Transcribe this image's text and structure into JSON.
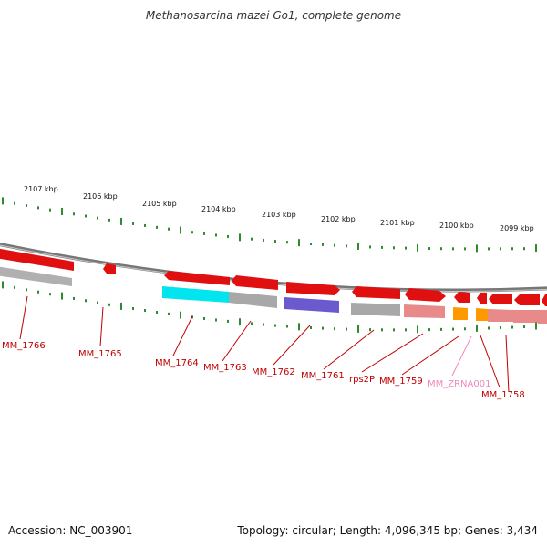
{
  "title": "Methanosarcina mazei Go1, complete genome",
  "footer": {
    "accession": "Accession: NC_003901",
    "topology": "Topology: circular; Length: 4,096,345 bp; Genes: 3,434"
  },
  "colors": {
    "backbone": "#8a8a8a",
    "tick": "#2e8b2e",
    "gene": "#e01010",
    "label": "#c00000",
    "rna_label": "#ee88bb",
    "cyan": "#00e5ee",
    "gray": "#a8a8a8",
    "purple": "#6a5acd",
    "pink": "#e88a8a",
    "orange": "#ff9900"
  },
  "kbp_ticks": [
    "2107 kbp",
    "2106 kbp",
    "2105 kbp",
    "2104 kbp",
    "2103 kbp",
    "2102 kbp",
    "2101 kbp",
    "2100 kbp",
    "2099 kbp"
  ],
  "genes": [
    {
      "id": "MM_1766"
    },
    {
      "id": "MM_1765"
    },
    {
      "id": "MM_1764"
    },
    {
      "id": "MM_1763"
    },
    {
      "id": "MM_1762"
    },
    {
      "id": "MM_1761"
    },
    {
      "id": "rps2P"
    },
    {
      "id": "MM_1759"
    },
    {
      "id": "MM_ZRNA001"
    },
    {
      "id": "MM_1758"
    }
  ]
}
